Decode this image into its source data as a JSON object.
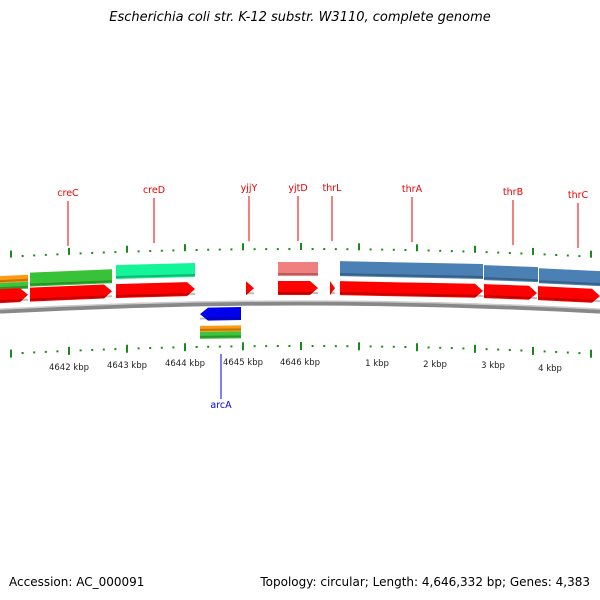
{
  "title": "Escherichia coli str. K-12 substr. W3110, complete genome",
  "accession": "Accession: AC_000091",
  "summary": "Topology: circular; Length: 4,646,332 bp; Genes: 4,383",
  "genes": [
    {
      "name": "creC"
    },
    {
      "name": "creD"
    },
    {
      "name": "yjjY"
    },
    {
      "name": "yjtD"
    },
    {
      "name": "thrL"
    },
    {
      "name": "thrA"
    },
    {
      "name": "thrB"
    },
    {
      "name": "thrC"
    }
  ],
  "reverse_genes": [
    {
      "name": "arcA"
    }
  ],
  "ticks": [
    "4642 kbp",
    "4643 kbp",
    "4644 kbp",
    "4645 kbp",
    "4646 kbp",
    "1 kbp",
    "2 kbp",
    "3 kbp",
    "4 kbp"
  ],
  "colors": {
    "gene": "#ff0000",
    "reverse_gene": "#0000ff",
    "tick": "#1a8a1a",
    "backbone": "#888888"
  }
}
